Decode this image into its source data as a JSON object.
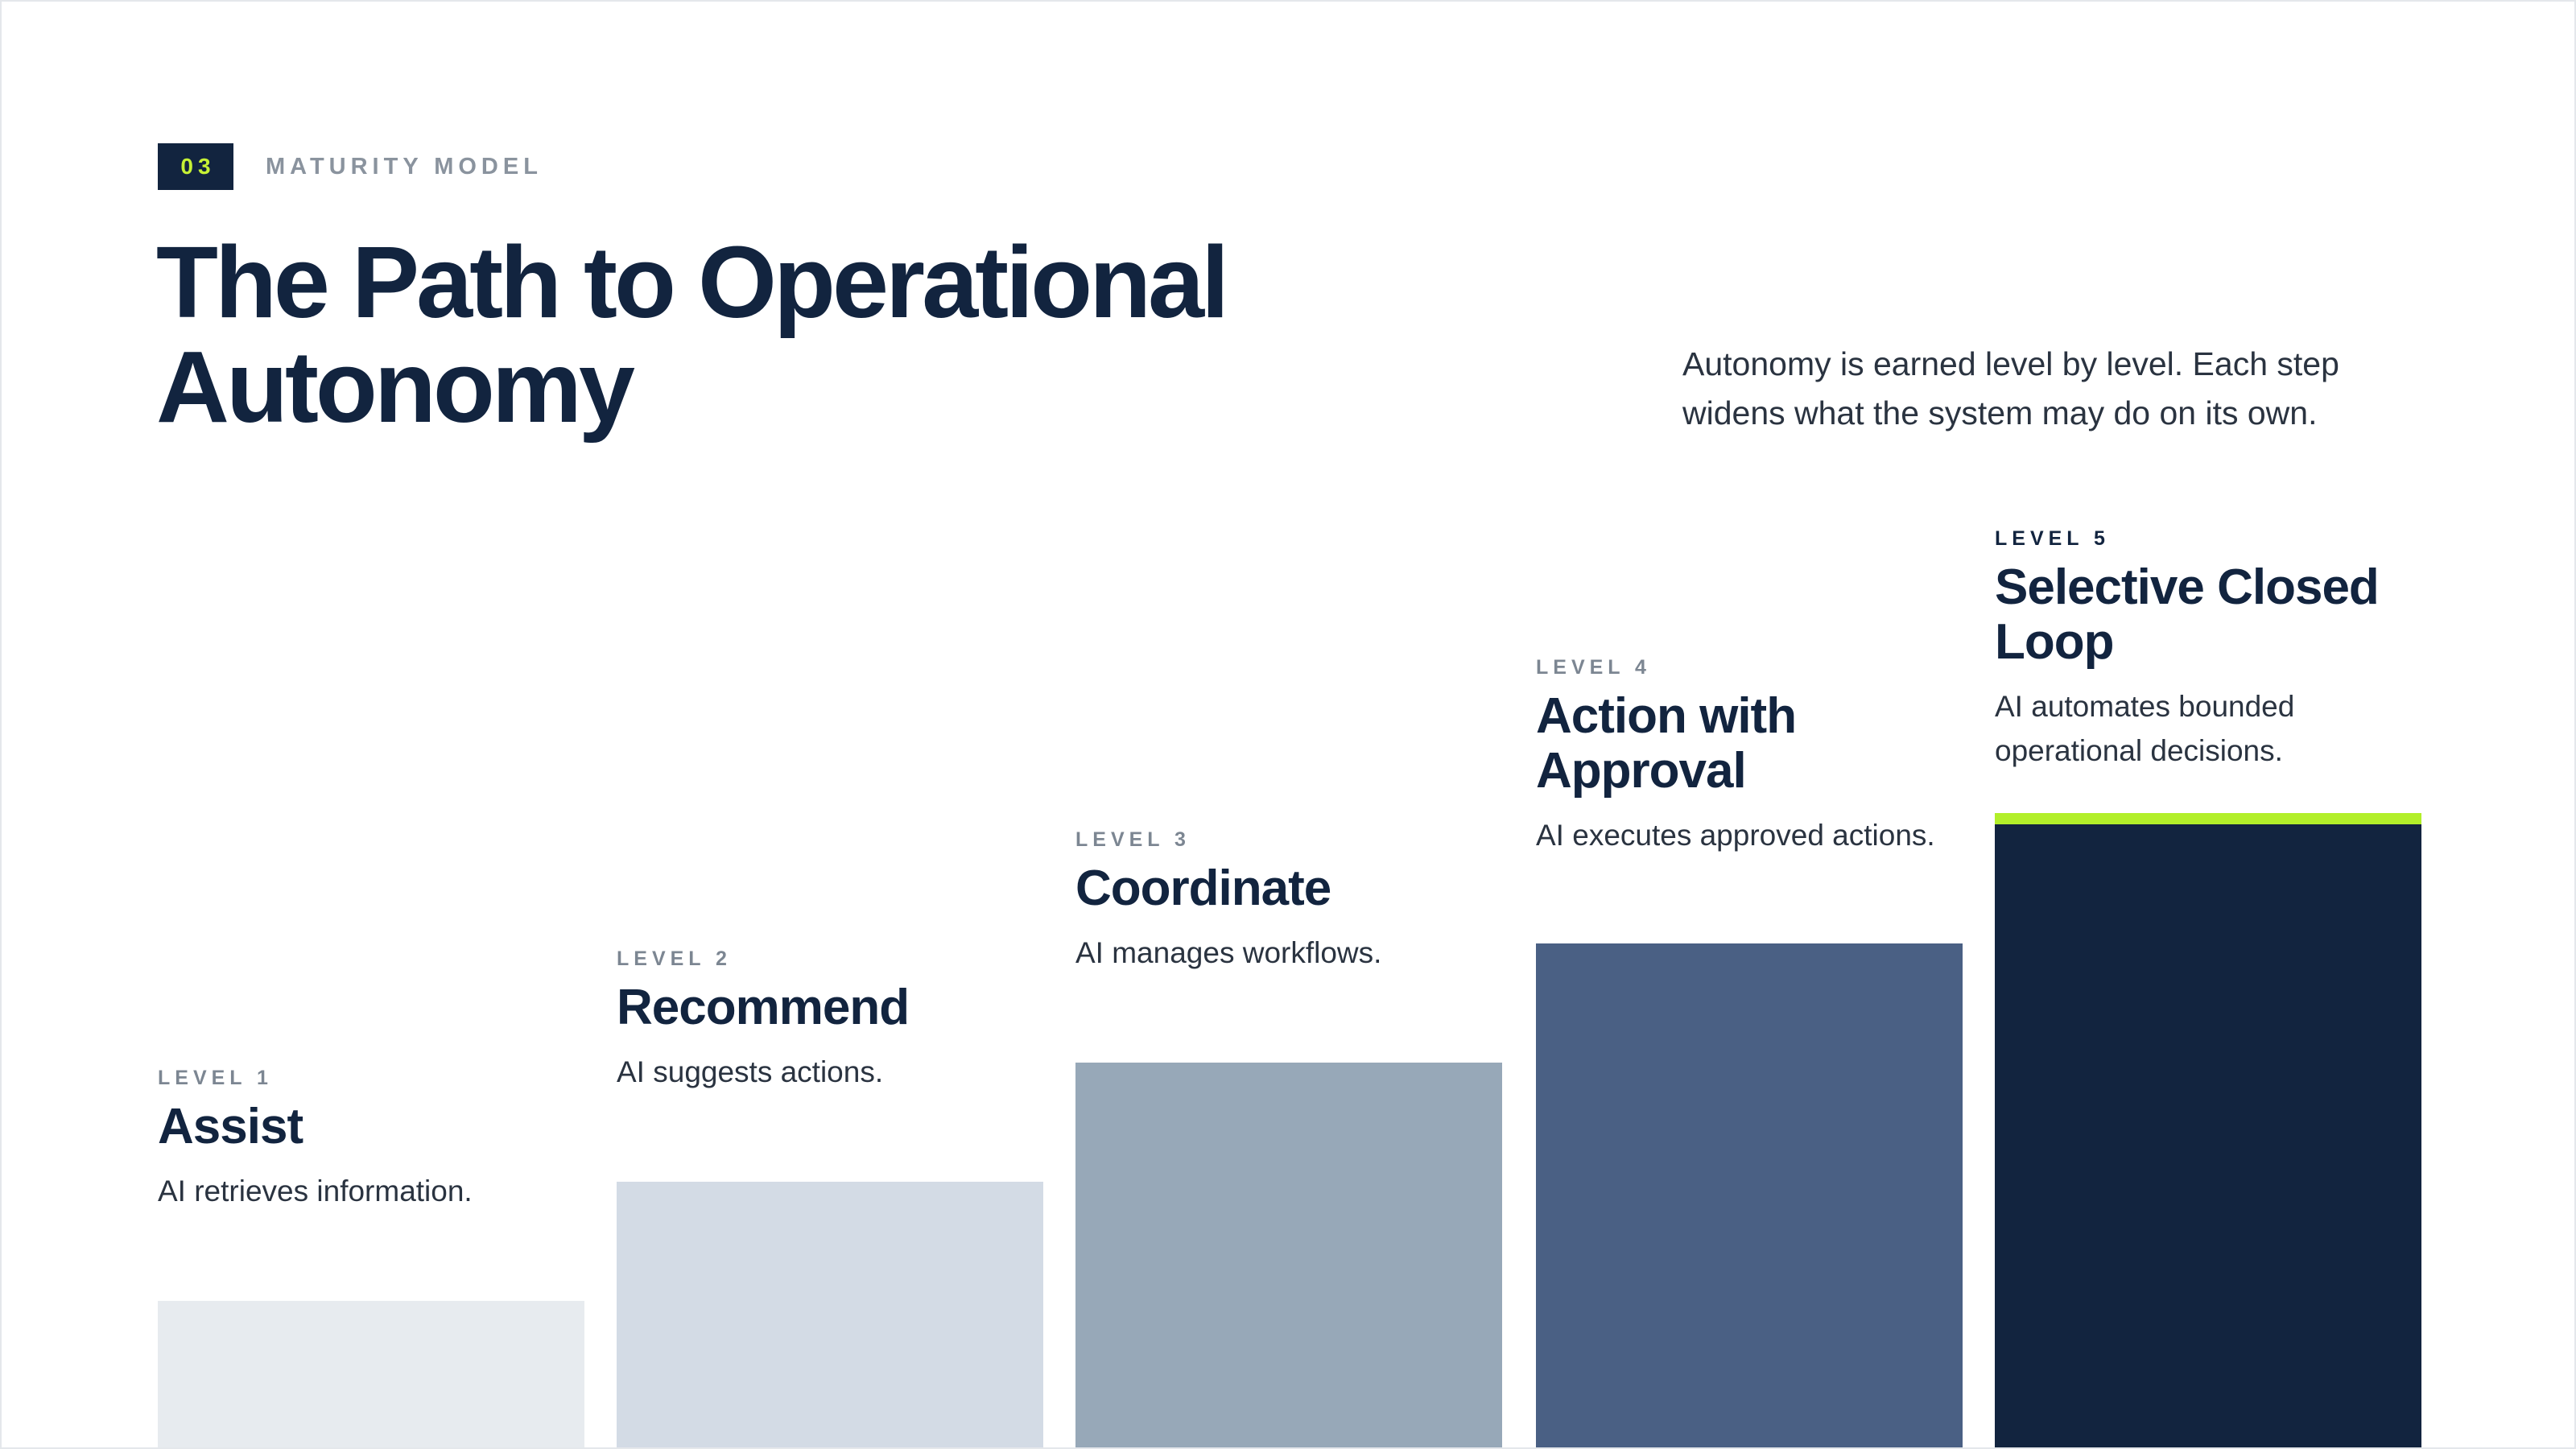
{
  "header": {
    "section_number": "03",
    "section_label": "MATURITY MODEL",
    "title_line1": "The Path to Operational",
    "title_line2": "Autonomy",
    "subtitle_line1": "Autonomy is earned level by level. Each step",
    "subtitle_line2": "widens what the system may do on its own."
  },
  "colors": {
    "navy": "#12243f",
    "accent_lime": "#b2ef2a",
    "level1_bar": "#e7ebef",
    "level2_bar": "#d3dbe5",
    "level3_bar": "#97a8b8",
    "level4_bar": "#4a6084",
    "level5_bar": "#12243f"
  },
  "levels": [
    {
      "label": "LEVEL 1",
      "title_line1": "Assist",
      "title_line2": "",
      "desc_line1": "AI retrieves information.",
      "desc_line2": "",
      "rank": 1
    },
    {
      "label": "LEVEL 2",
      "title_line1": "Recommend",
      "title_line2": "",
      "desc_line1": "AI suggests actions.",
      "desc_line2": "",
      "rank": 2
    },
    {
      "label": "LEVEL 3",
      "title_line1": "Coordinate",
      "title_line2": "",
      "desc_line1": "AI manages workflows.",
      "desc_line2": "",
      "rank": 3
    },
    {
      "label": "LEVEL 4",
      "title_line1": "Action with",
      "title_line2": "Approval",
      "desc_line1": "AI executes approved actions.",
      "desc_line2": "",
      "rank": 4
    },
    {
      "label": "LEVEL 5",
      "title_line1": "Selective Closed",
      "title_line2": "Loop",
      "desc_line1": "AI automates bounded",
      "desc_line2": "operational decisions.",
      "rank": 5
    }
  ]
}
